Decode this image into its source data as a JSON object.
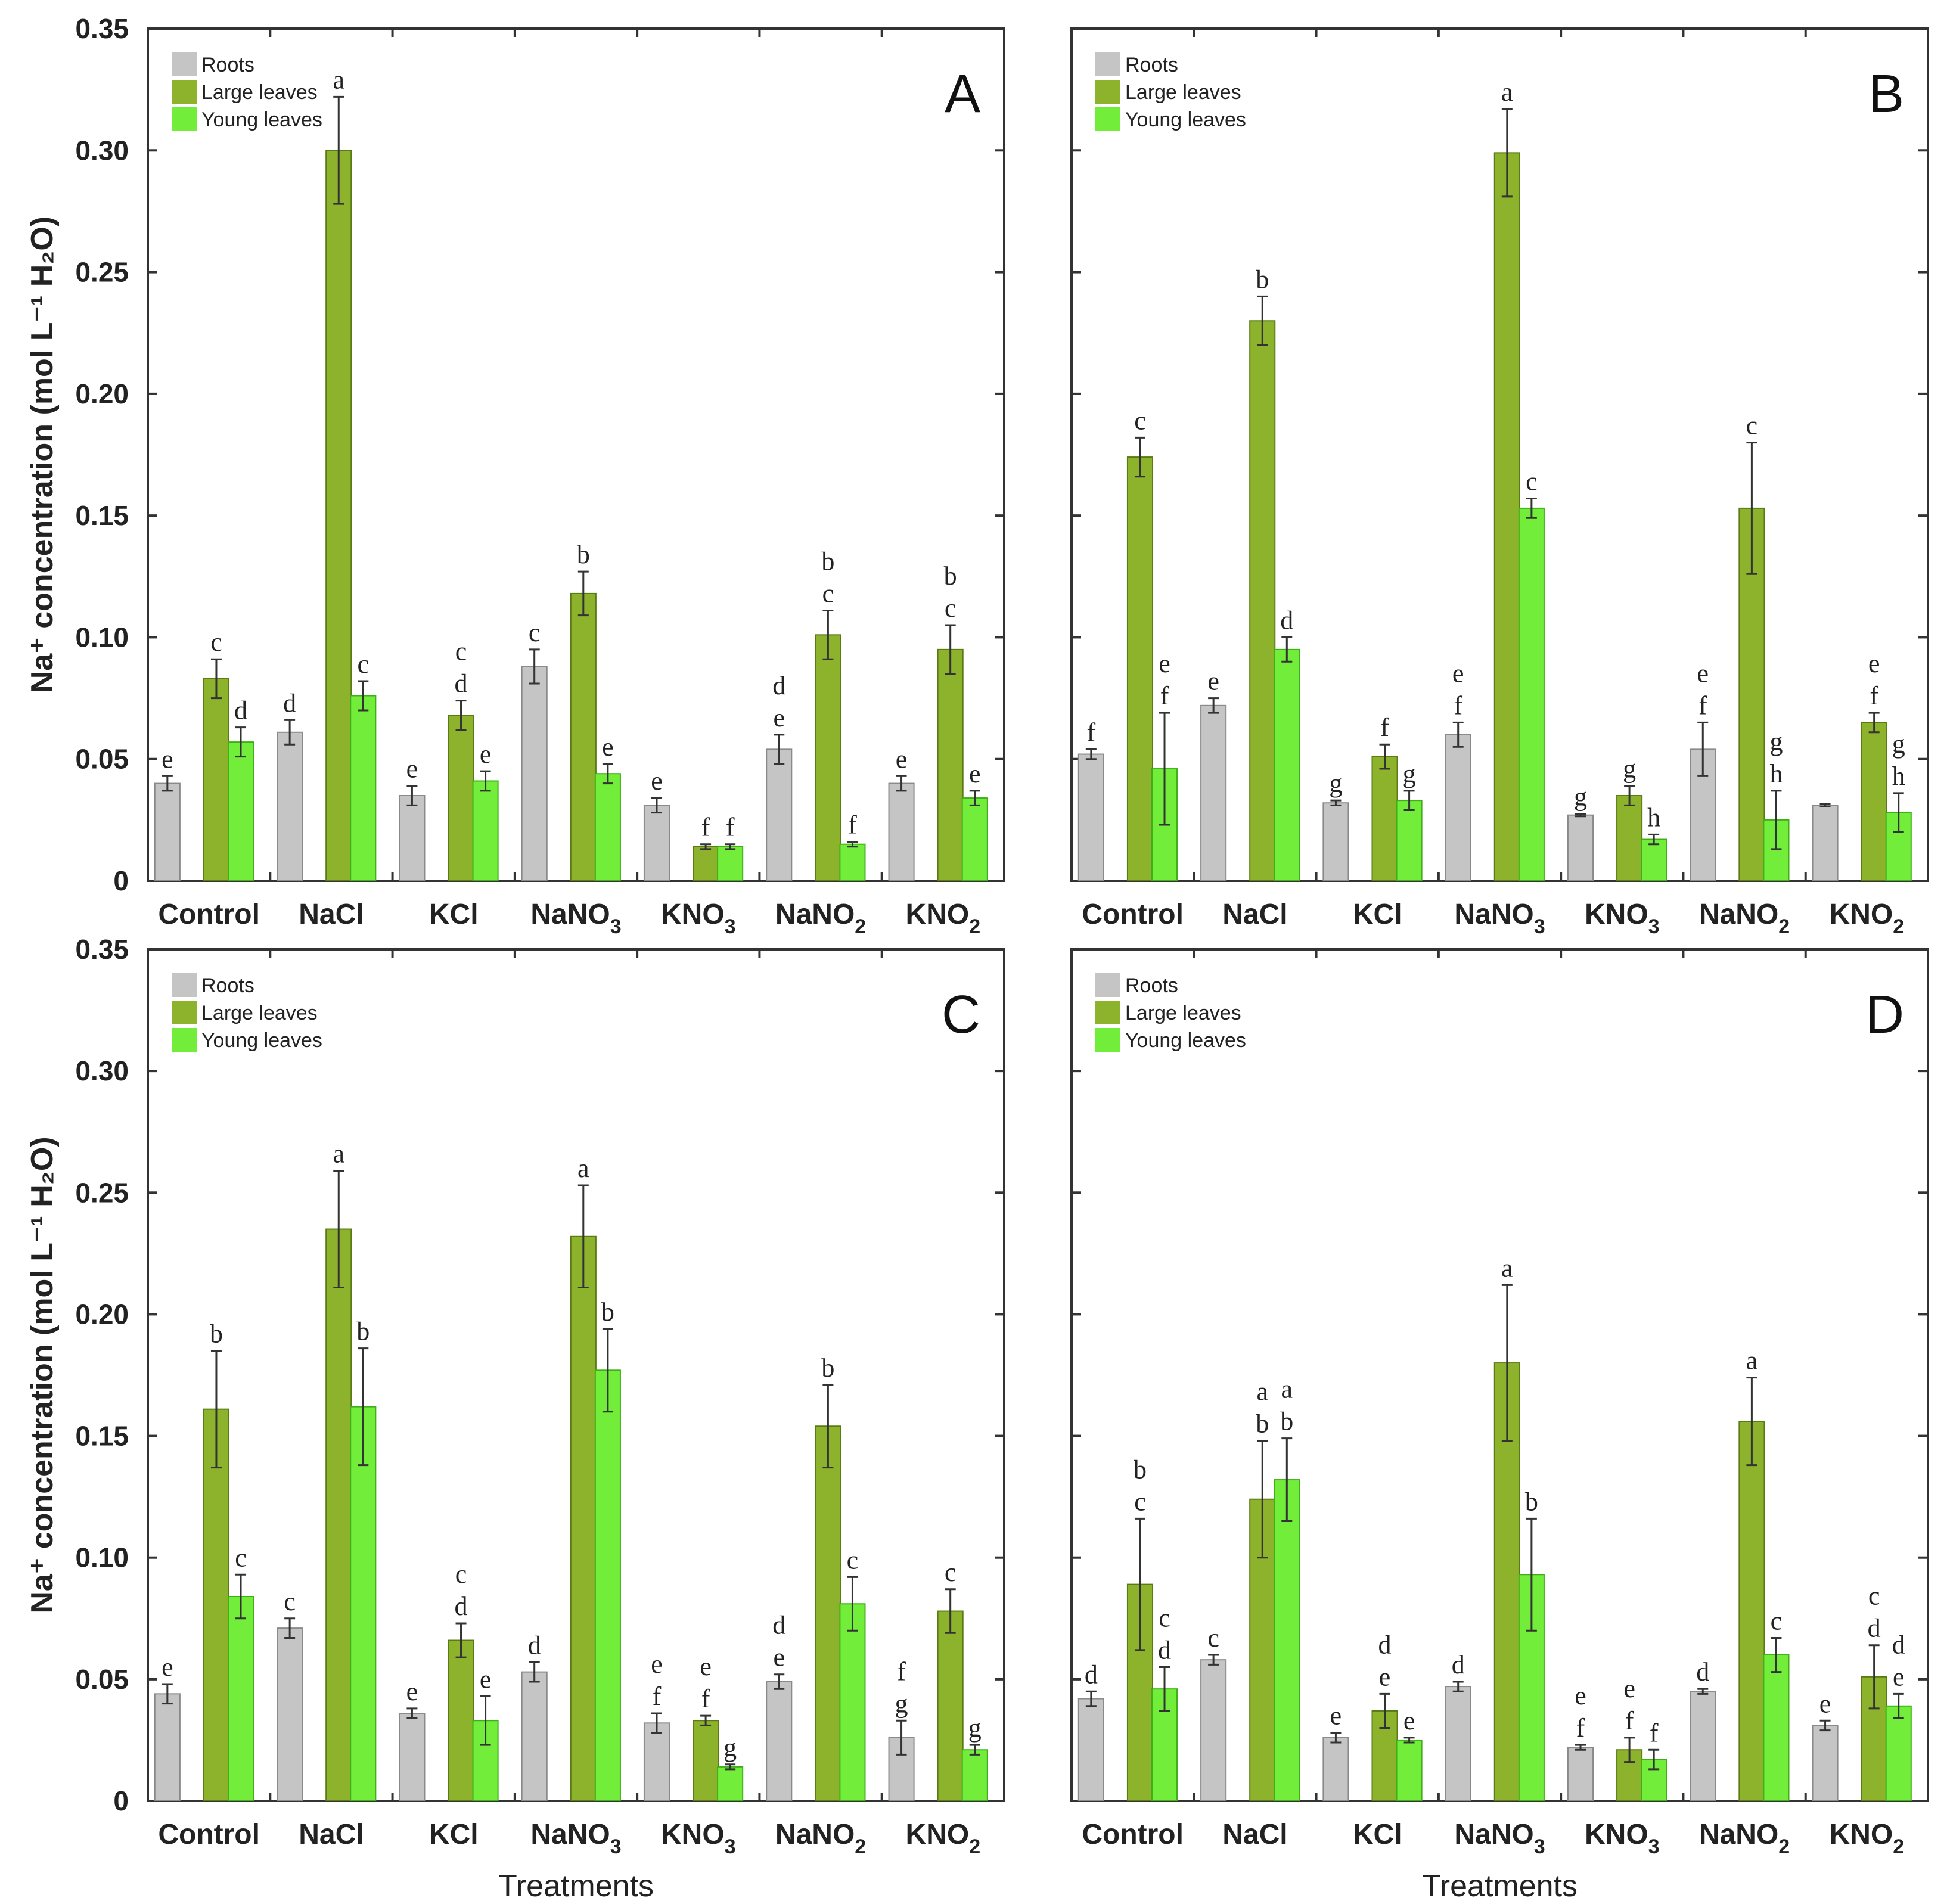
{
  "chart_data": [
    {
      "type": "bar",
      "panel": "A",
      "title": "A",
      "ylabel": "Na⁺ concentration (mol L⁻¹ H₂O)",
      "xlabel": "",
      "ylim": [
        0,
        0.35
      ],
      "yticks": [
        "0",
        "0.05",
        "0.10",
        "0.15",
        "0.20",
        "0.25",
        "0.30",
        "0.35"
      ],
      "categories": [
        "Control",
        "NaCl",
        "KCl",
        "NaNO3",
        "KNO3",
        "NaNO2",
        "KNO2"
      ],
      "series": [
        {
          "name": "Roots",
          "values": [
            0.04,
            0.061,
            0.035,
            0.088,
            0.031,
            0.054,
            0.04
          ],
          "errors": [
            0.003,
            0.005,
            0.004,
            0.007,
            0.003,
            0.006,
            0.003
          ],
          "labels": [
            "e",
            "d",
            "e",
            "c",
            "e",
            "d e",
            ""
          ]
        },
        {
          "name": "Large leaves",
          "values": [
            0.083,
            0.3,
            0.068,
            0.118,
            0.014,
            0.101,
            0.095
          ],
          "errors": [
            0.008,
            0.022,
            0.006,
            0.009,
            0.001,
            0.01,
            0.01
          ],
          "labels": [
            "c",
            "a",
            "c d",
            "b",
            "f",
            "b c",
            "b c"
          ]
        },
        {
          "name": "Young leaves",
          "values": [
            0.057,
            0.076,
            0.041,
            0.044,
            0.014,
            0.015,
            0.034
          ],
          "errors": [
            0.006,
            0.006,
            0.004,
            0.004,
            0.001,
            0.001,
            0.003
          ],
          "labels": [
            "d",
            "c",
            "e",
            "e",
            "f",
            "f",
            "e"
          ]
        }
      ],
      "root_extra_labels": [
        "",
        "",
        "",
        "",
        "",
        "",
        "e"
      ]
    },
    {
      "type": "bar",
      "panel": "B",
      "title": "B",
      "ylim": [
        0,
        0.35
      ],
      "categories": [
        "Control",
        "NaCl",
        "KCl",
        "NaNO3",
        "KNO3",
        "NaNO2",
        "KNO2"
      ],
      "series": [
        {
          "name": "Roots",
          "values": [
            0.052,
            0.072,
            0.032,
            0.06,
            0.027,
            0.054,
            0.031
          ],
          "errors": [
            0.002,
            0.003,
            0.001,
            0.005,
            0.0005,
            0.011,
            0.0005
          ],
          "labels": [
            "f",
            "e",
            "g",
            "e f",
            "g",
            "e f",
            ""
          ]
        },
        {
          "name": "Large leaves",
          "values": [
            0.174,
            0.23,
            0.051,
            0.299,
            0.035,
            0.153,
            0.065
          ],
          "errors": [
            0.008,
            0.01,
            0.005,
            0.018,
            0.004,
            0.027,
            0.004
          ],
          "labels": [
            "c",
            "b",
            "f",
            "a",
            "g",
            "c",
            "e f"
          ]
        },
        {
          "name": "Young leaves",
          "values": [
            0.046,
            0.095,
            0.033,
            0.153,
            0.017,
            0.025,
            0.028
          ],
          "errors": [
            0.023,
            0.005,
            0.004,
            0.004,
            0.002,
            0.012,
            0.008
          ],
          "labels": [
            "e f",
            "d",
            "g",
            "c",
            "h",
            "g h",
            "g h"
          ]
        }
      ]
    },
    {
      "type": "bar",
      "panel": "C",
      "title": "C",
      "ylabel": "Na⁺ concentration (mol L⁻¹ H₂O)",
      "xlabel": "Treatments",
      "ylim": [
        0,
        0.35
      ],
      "categories": [
        "Control",
        "NaCl",
        "KCl",
        "NaNO3",
        "KNO3",
        "NaNO2",
        "KNO2"
      ],
      "series": [
        {
          "name": "Roots",
          "values": [
            0.044,
            0.071,
            0.036,
            0.053,
            0.032,
            0.049,
            0.026
          ],
          "errors": [
            0.004,
            0.004,
            0.002,
            0.004,
            0.004,
            0.003,
            0.007
          ],
          "labels": [
            "e",
            "c",
            "e",
            "d",
            "e f",
            "d e",
            "f g"
          ]
        },
        {
          "name": "Large leaves",
          "values": [
            0.161,
            0.235,
            0.066,
            0.232,
            0.033,
            0.154,
            0.078
          ],
          "errors": [
            0.024,
            0.024,
            0.007,
            0.021,
            0.002,
            0.017,
            0.009
          ],
          "labels": [
            "b",
            "a",
            "c d",
            "a",
            "e f",
            "b",
            "c"
          ]
        },
        {
          "name": "Young leaves",
          "values": [
            0.084,
            0.162,
            0.033,
            0.177,
            0.014,
            0.081,
            0.021
          ],
          "errors": [
            0.009,
            0.024,
            0.01,
            0.017,
            0.001,
            0.011,
            0.002
          ],
          "labels": [
            "c",
            "b",
            "e",
            "b",
            "g",
            "c",
            "g"
          ]
        }
      ]
    },
    {
      "type": "bar",
      "panel": "D",
      "title": "D",
      "xlabel": "Treatments",
      "ylim": [
        0,
        0.35
      ],
      "categories": [
        "Control",
        "NaCl",
        "KCl",
        "NaNO3",
        "KNO3",
        "NaNO2",
        "KNO2"
      ],
      "series": [
        {
          "name": "Roots",
          "values": [
            0.042,
            0.058,
            0.026,
            0.047,
            0.022,
            0.045,
            0.031
          ],
          "errors": [
            0.003,
            0.002,
            0.002,
            0.002,
            0.001,
            0.001,
            0.002
          ],
          "labels": [
            "d",
            "c",
            "e",
            "d",
            "e f",
            "d",
            "e"
          ]
        },
        {
          "name": "Large leaves",
          "values": [
            0.089,
            0.124,
            0.037,
            0.18,
            0.021,
            0.156,
            0.051
          ],
          "errors": [
            0.027,
            0.024,
            0.007,
            0.032,
            0.005,
            0.018,
            0.013
          ],
          "labels": [
            "b c",
            "a b",
            "d e",
            "a",
            "e f",
            "a",
            "c d"
          ]
        },
        {
          "name": "Young leaves",
          "values": [
            0.046,
            0.132,
            0.025,
            0.093,
            0.017,
            0.06,
            0.039
          ],
          "errors": [
            0.009,
            0.017,
            0.001,
            0.023,
            0.004,
            0.007,
            0.005
          ],
          "labels": [
            "c d",
            "a b",
            "e",
            "b",
            "f",
            "c",
            "d e"
          ]
        }
      ]
    }
  ],
  "legend": [
    "Roots",
    "Large leaves",
    "Young leaves"
  ],
  "colors": {
    "Roots": "#c5c5c5",
    "Large leaves": "#8db32c",
    "Young leaves": "#72ee3a"
  }
}
